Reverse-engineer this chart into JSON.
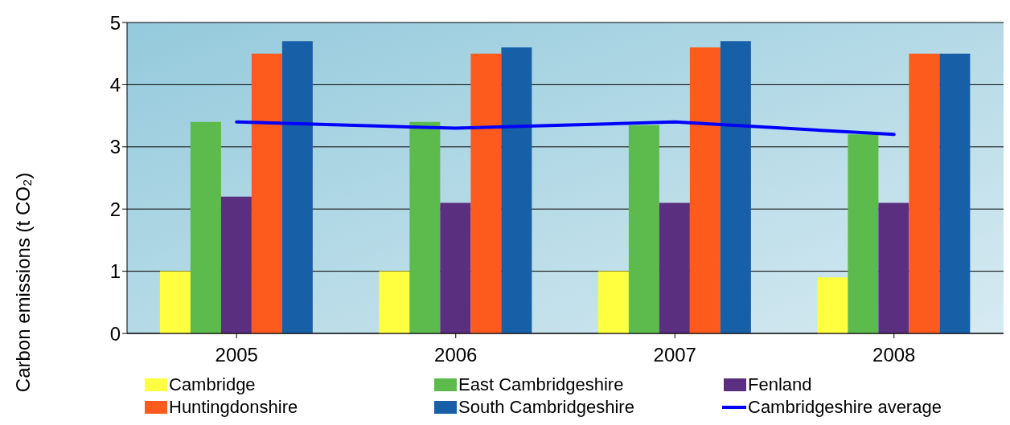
{
  "chart_data": {
    "type": "bar",
    "ylabel": "Carbon emissions (t CO₂)",
    "categories": [
      "2005",
      "2006",
      "2007",
      "2008"
    ],
    "ylim": [
      0,
      5
    ],
    "yticks": [
      0,
      1,
      2,
      3,
      4,
      5
    ],
    "grid": "y",
    "legend": "bottom",
    "series": [
      {
        "name": "Cambridge",
        "color": "#ffff40",
        "values": [
          1.0,
          1.0,
          1.0,
          0.9
        ]
      },
      {
        "name": "East Cambridgeshire",
        "color": "#5cbb4c",
        "values": [
          3.4,
          3.4,
          3.35,
          3.2
        ]
      },
      {
        "name": "Fenland",
        "color": "#5a2f80",
        "values": [
          2.2,
          2.1,
          2.1,
          2.1
        ]
      },
      {
        "name": "Huntingdonshire",
        "color": "#fd5a1e",
        "values": [
          4.5,
          4.5,
          4.6,
          4.5
        ]
      },
      {
        "name": "South Cambridgeshire",
        "color": "#1760a8",
        "values": [
          4.7,
          4.6,
          4.7,
          4.5
        ]
      },
      {
        "name": "Cambridgeshire  average",
        "type": "line",
        "color": "#0000ff",
        "values": [
          3.4,
          3.3,
          3.4,
          3.2
        ]
      }
    ]
  }
}
